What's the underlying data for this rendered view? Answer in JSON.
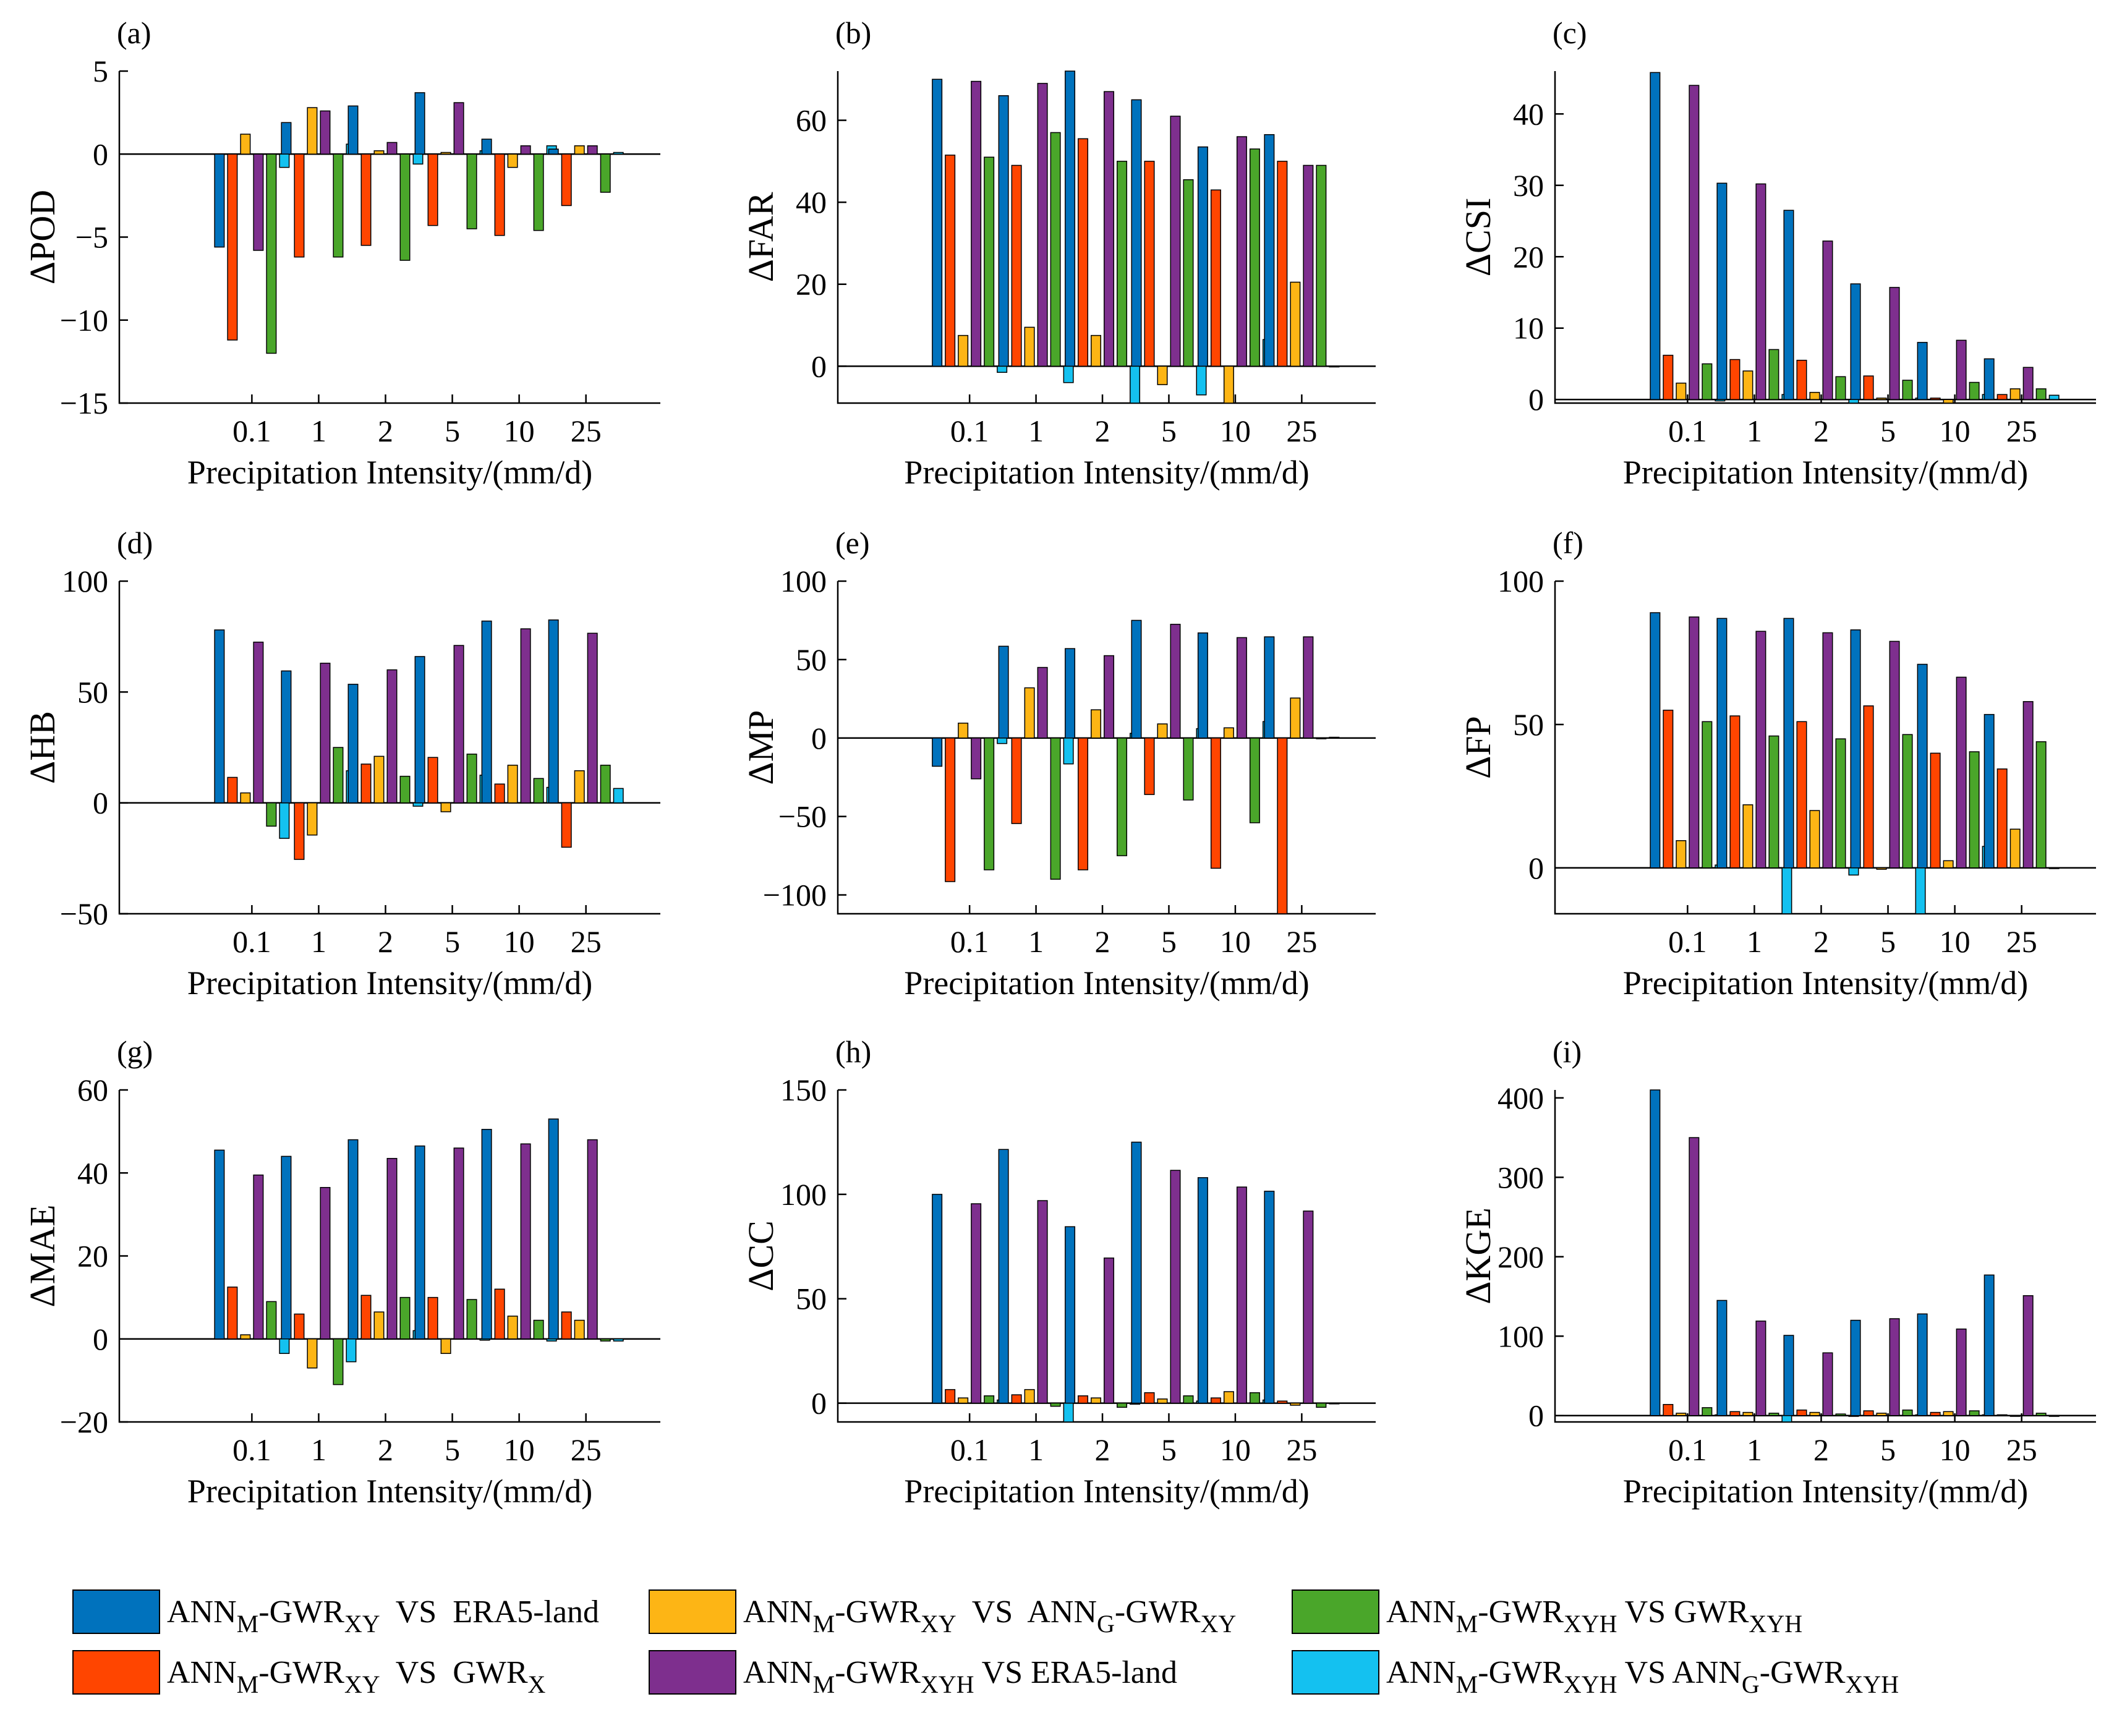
{
  "colors": {
    "s1": "#0072BD",
    "s2": "#FF4500",
    "s3": "#FDB515",
    "s4": "#7E2F8E",
    "s5": "#4AA62A",
    "s6": "#14C1F0"
  },
  "shared": {
    "categories": [
      "0.1",
      "1",
      "2",
      "5",
      "10",
      "25"
    ],
    "xlabel": "Precipitation Intensity/(mm/d)"
  },
  "legend": [
    {
      "id": "s1",
      "a": "ANN",
      "asub": "M",
      "b": "-GWR",
      "bsub": "XY",
      "c": "  VS  ERA5-land",
      "d": "",
      "dsub": "",
      "e": "",
      "esub": ""
    },
    {
      "id": "s2",
      "a": "ANN",
      "asub": "M",
      "b": "-GWR",
      "bsub": "XY",
      "c": "  VS  GWR",
      "d": "",
      "dsub": "X",
      "e": "",
      "esub": ""
    },
    {
      "id": "s3",
      "a": "ANN",
      "asub": "M",
      "b": "-GWR",
      "bsub": "XY",
      "c": "  VS  ANN",
      "d": "",
      "dsub": "G",
      "e": "-GWR",
      "esub": "XY"
    },
    {
      "id": "s4",
      "a": "ANN",
      "asub": "M",
      "b": "-GWR",
      "bsub": "XYH",
      "c": " VS ERA5-land",
      "d": "",
      "dsub": "",
      "e": "",
      "esub": ""
    },
    {
      "id": "s5",
      "a": "ANN",
      "asub": "M",
      "b": "-GWR",
      "bsub": "XYH",
      "c": " VS GWR",
      "d": "",
      "dsub": "XYH",
      "e": "",
      "esub": ""
    },
    {
      "id": "s6",
      "a": "ANN",
      "asub": "M",
      "b": "-GWR",
      "bsub": "XYH",
      "c": " VS ANN",
      "d": "",
      "dsub": "G",
      "e": "-GWR",
      "esub": "XYH"
    }
  ],
  "chart_data": [
    {
      "type": "bar",
      "panel": "(a)",
      "ylabel": "ΔPOD",
      "ylim": [
        -15,
        5
      ],
      "yticks": [
        -15,
        -10,
        -5,
        0,
        5
      ],
      "series": [
        {
          "key": "s1",
          "values": [
            -5.6,
            1.9,
            2.9,
            3.7,
            0.9,
            0.3
          ]
        },
        {
          "key": "s2",
          "values": [
            -11.2,
            -6.2,
            -5.5,
            -4.3,
            -4.9,
            -3.1
          ]
        },
        {
          "key": "s3",
          "values": [
            1.2,
            2.8,
            0.2,
            0.1,
            -0.8,
            0.5
          ]
        },
        {
          "key": "s4",
          "values": [
            -5.8,
            2.6,
            0.7,
            3.1,
            0.5,
            0.5
          ]
        },
        {
          "key": "s5",
          "values": [
            -12.0,
            -6.2,
            -6.4,
            -4.5,
            -4.6,
            -2.3
          ]
        },
        {
          "key": "s6",
          "values": [
            -0.8,
            0.6,
            -0.6,
            0.2,
            0.5,
            0.1
          ]
        }
      ]
    },
    {
      "type": "bar",
      "panel": "(b)",
      "ylabel": "ΔFAR",
      "ylim": [
        -9,
        72
      ],
      "yticks": [
        0,
        20,
        40,
        60
      ],
      "series": [
        {
          "key": "s1",
          "values": [
            70,
            66,
            72,
            65,
            53.5,
            56.5
          ]
        },
        {
          "key": "s2",
          "values": [
            51.5,
            49,
            55.5,
            50,
            43,
            50
          ]
        },
        {
          "key": "s3",
          "values": [
            7.5,
            9.5,
            7.5,
            -4.5,
            -9,
            20.5
          ]
        },
        {
          "key": "s4",
          "values": [
            69.5,
            69,
            67,
            61,
            56,
            49
          ]
        },
        {
          "key": "s5",
          "values": [
            51,
            57,
            50,
            45.5,
            53,
            49
          ]
        },
        {
          "key": "s6",
          "values": [
            -1.5,
            -4,
            -9,
            -7,
            6.5,
            0
          ]
        }
      ]
    },
    {
      "type": "bar",
      "panel": "(c)",
      "ylabel": "ΔCSI",
      "ylim": [
        -0.5,
        46
      ],
      "yticks": [
        0,
        10,
        20,
        30,
        40
      ],
      "series": [
        {
          "key": "s1",
          "values": [
            45.8,
            30.3,
            26.5,
            16.2,
            8.0,
            5.7
          ]
        },
        {
          "key": "s2",
          "values": [
            6.2,
            5.6,
            5.5,
            3.3,
            0.2,
            0.7
          ]
        },
        {
          "key": "s3",
          "values": [
            2.3,
            4.0,
            1.0,
            0.2,
            -0.8,
            1.5
          ]
        },
        {
          "key": "s4",
          "values": [
            44.0,
            30.2,
            22.2,
            15.7,
            8.3,
            4.5
          ]
        },
        {
          "key": "s5",
          "values": [
            5.0,
            7.0,
            3.2,
            2.7,
            2.4,
            1.5
          ]
        },
        {
          "key": "s6",
          "values": [
            -0.2,
            0.7,
            -0.8,
            0.2,
            0.7,
            0.6
          ]
        }
      ]
    },
    {
      "type": "bar",
      "panel": "(d)",
      "ylabel": "ΔHB",
      "ylim": [
        -50,
        100
      ],
      "yticks": [
        -50,
        0,
        50,
        100
      ],
      "series": [
        {
          "key": "s1",
          "values": [
            78,
            59.5,
            53.5,
            66,
            82,
            82.5
          ]
        },
        {
          "key": "s2",
          "values": [
            11.5,
            -25.5,
            17.5,
            20.5,
            8.5,
            -20
          ]
        },
        {
          "key": "s3",
          "values": [
            4.5,
            -14.5,
            21,
            -4,
            17,
            14.5
          ]
        },
        {
          "key": "s4",
          "values": [
            72.5,
            63,
            60,
            71,
            78.5,
            76.5
          ]
        },
        {
          "key": "s5",
          "values": [
            -10.5,
            25,
            12,
            22,
            11,
            17
          ]
        },
        {
          "key": "s6",
          "values": [
            -16,
            14.5,
            -1.5,
            12.5,
            7,
            6.5
          ]
        }
      ]
    },
    {
      "type": "bar",
      "panel": "(e)",
      "ylabel": "ΔMP",
      "ylim": [
        -112,
        100
      ],
      "yticks": [
        -100,
        -50,
        0,
        50,
        100
      ],
      "series": [
        {
          "key": "s1",
          "values": [
            -18,
            58.5,
            57,
            75,
            67,
            64.5
          ]
        },
        {
          "key": "s2",
          "values": [
            -91.5,
            -54.5,
            -84,
            -36,
            -83,
            -112
          ]
        },
        {
          "key": "s3",
          "values": [
            9.5,
            32,
            18,
            9,
            6.5,
            25.5
          ]
        },
        {
          "key": "s4",
          "values": [
            -26,
            45,
            52.5,
            72.5,
            64,
            64.5
          ]
        },
        {
          "key": "s5",
          "values": [
            -84,
            -90,
            -75,
            -39.5,
            -54,
            0
          ]
        },
        {
          "key": "s6",
          "values": [
            -3.5,
            -16.5,
            3,
            6,
            10.5,
            0.5
          ]
        }
      ]
    },
    {
      "type": "bar",
      "panel": "(f)",
      "ylabel": "ΔFP",
      "ylim": [
        -16,
        100
      ],
      "yticks": [
        0,
        50,
        100
      ],
      "series": [
        {
          "key": "s1",
          "values": [
            89,
            87,
            87,
            83,
            71,
            53.5
          ]
        },
        {
          "key": "s2",
          "values": [
            55,
            53,
            51,
            56.5,
            40,
            34.5
          ]
        },
        {
          "key": "s3",
          "values": [
            9.5,
            22,
            20,
            -0.5,
            2.5,
            13.5
          ]
        },
        {
          "key": "s4",
          "values": [
            87.5,
            82.5,
            82,
            79,
            66.5,
            58
          ]
        },
        {
          "key": "s5",
          "values": [
            51,
            46,
            45,
            46.5,
            40.5,
            44
          ]
        },
        {
          "key": "s6",
          "values": [
            1,
            -16,
            -2.5,
            -16,
            7.5,
            0
          ]
        }
      ]
    },
    {
      "type": "bar",
      "panel": "(g)",
      "ylabel": "ΔMAE",
      "ylim": [
        -20,
        60
      ],
      "yticks": [
        -20,
        0,
        20,
        40,
        60
      ],
      "series": [
        {
          "key": "s1",
          "values": [
            45.5,
            44,
            48,
            46.5,
            50.5,
            53
          ]
        },
        {
          "key": "s2",
          "values": [
            12.5,
            6,
            10.5,
            10,
            12,
            6.5
          ]
        },
        {
          "key": "s3",
          "values": [
            1,
            -7,
            6.5,
            -3.5,
            5.5,
            4.5
          ]
        },
        {
          "key": "s4",
          "values": [
            39.5,
            36.5,
            43.5,
            46,
            47,
            48
          ]
        },
        {
          "key": "s5",
          "values": [
            9,
            -11,
            10,
            9.5,
            4.5,
            -0.5
          ]
        },
        {
          "key": "s6",
          "values": [
            -3.5,
            -5.5,
            2,
            -0.3,
            -0.5,
            -0.5
          ]
        }
      ]
    },
    {
      "type": "bar",
      "panel": "(h)",
      "ylabel": "ΔCC",
      "ylim": [
        -9,
        150
      ],
      "yticks": [
        0,
        50,
        100,
        150
      ],
      "series": [
        {
          "key": "s1",
          "values": [
            100,
            121.5,
            84.5,
            125,
            108,
            101.5
          ]
        },
        {
          "key": "s2",
          "values": [
            6.5,
            4,
            3.5,
            5,
            2.5,
            1
          ]
        },
        {
          "key": "s3",
          "values": [
            2.5,
            6.5,
            2.5,
            2,
            5.5,
            -1
          ]
        },
        {
          "key": "s4",
          "values": [
            95.5,
            97,
            69.5,
            111.5,
            103.5,
            92
          ]
        },
        {
          "key": "s5",
          "values": [
            3.5,
            -1.5,
            -2,
            3.5,
            5,
            -2
          ]
        },
        {
          "key": "s6",
          "values": [
            1.5,
            -9,
            -0.5,
            1,
            1.5,
            0
          ]
        }
      ]
    },
    {
      "type": "bar",
      "panel": "(i)",
      "ylabel": "ΔKGE",
      "ylim": [
        -8,
        410
      ],
      "yticks": [
        0,
        100,
        200,
        300,
        400
      ],
      "series": [
        {
          "key": "s1",
          "values": [
            410,
            145,
            101,
            120,
            128,
            177
          ]
        },
        {
          "key": "s2",
          "values": [
            14,
            5,
            7,
            6,
            4,
            1
          ]
        },
        {
          "key": "s3",
          "values": [
            3,
            4,
            4,
            3,
            5,
            -1
          ]
        },
        {
          "key": "s4",
          "values": [
            350,
            119,
            79,
            122,
            109,
            151
          ]
        },
        {
          "key": "s5",
          "values": [
            10,
            3,
            2,
            7,
            6,
            3
          ]
        },
        {
          "key": "s6",
          "values": [
            1,
            -8,
            -1,
            1,
            1,
            -1
          ]
        }
      ]
    }
  ]
}
